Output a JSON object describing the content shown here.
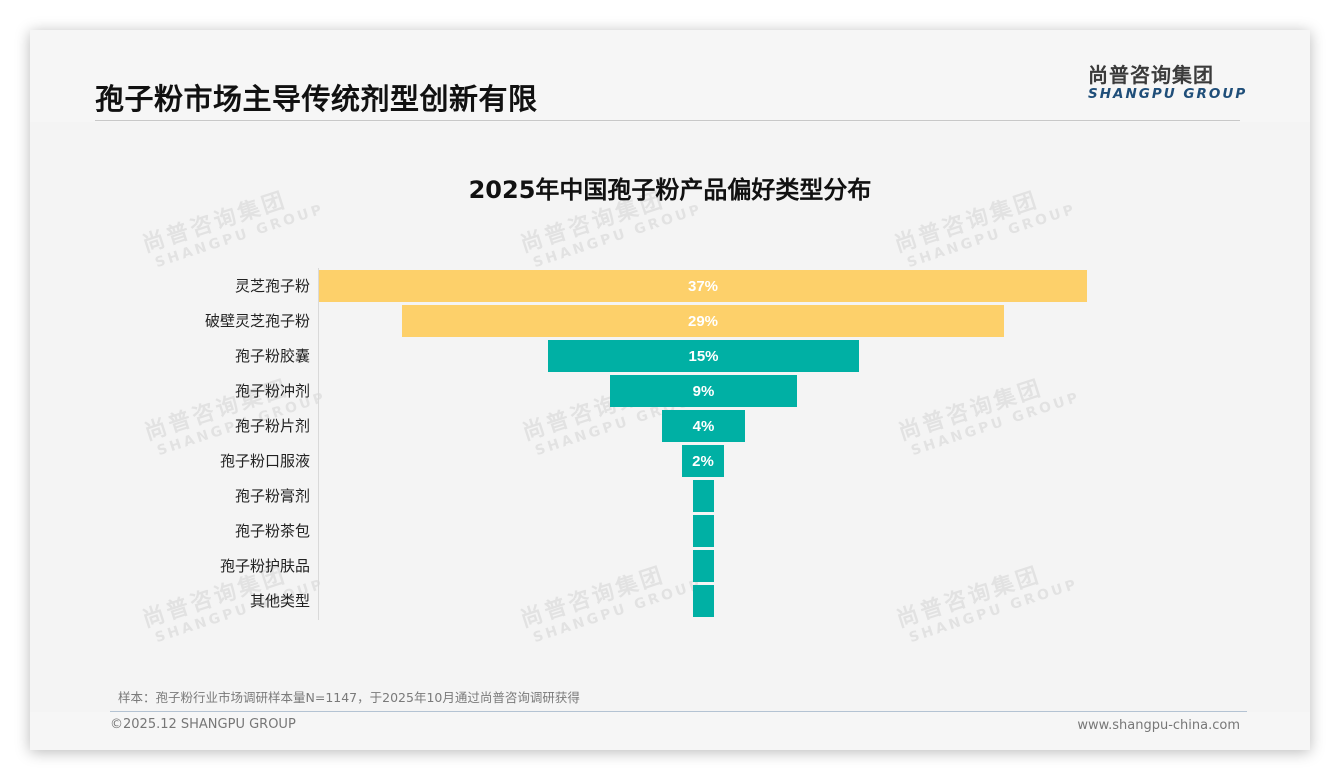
{
  "header": {
    "title": "孢子粉市场主导传统剂型创新有限",
    "logo_cn": "尚普咨询集团",
    "logo_en": "SHANGPU GROUP"
  },
  "watermark": {
    "cn": "尚普咨询集团",
    "en": "SHANGPU GROUP"
  },
  "colors": {
    "highlight": "#fdd06a",
    "primary": "#00b0a4",
    "background": "#f4f4f4",
    "logo_blue": "#1f4e79"
  },
  "chart_data": {
    "type": "bar",
    "subtype": "funnel (centered horizontal bars)",
    "title": "2025年中国孢子粉产品偏好类型分布",
    "xlabel": "",
    "ylabel": "",
    "categories": [
      "灵芝孢子粉",
      "破壁灵芝孢子粉",
      "孢子粉胶囊",
      "孢子粉冲剂",
      "孢子粉片剂",
      "孢子粉口服液",
      "孢子粉膏剂",
      "孢子粉茶包",
      "孢子粉护肤品",
      "其他类型"
    ],
    "values": [
      37,
      29,
      15,
      9,
      4,
      2,
      1,
      1,
      1,
      1
    ],
    "value_labels": [
      "37%",
      "29%",
      "15%",
      "9%",
      "4%",
      "2%",
      "",
      "",
      "",
      ""
    ],
    "unit": "%",
    "bar_colors": [
      "#fdd06a",
      "#fdd06a",
      "#00b0a4",
      "#00b0a4",
      "#00b0a4",
      "#00b0a4",
      "#00b0a4",
      "#00b0a4",
      "#00b0a4",
      "#00b0a4"
    ],
    "grid": false,
    "legend": null
  },
  "footer": {
    "note": "样本：孢子粉行业市场调研样本量N=1147，于2025年10月通过尚普咨询调研获得",
    "copyright": "©2025.12 SHANGPU GROUP",
    "website": "www.shangpu-china.com"
  }
}
